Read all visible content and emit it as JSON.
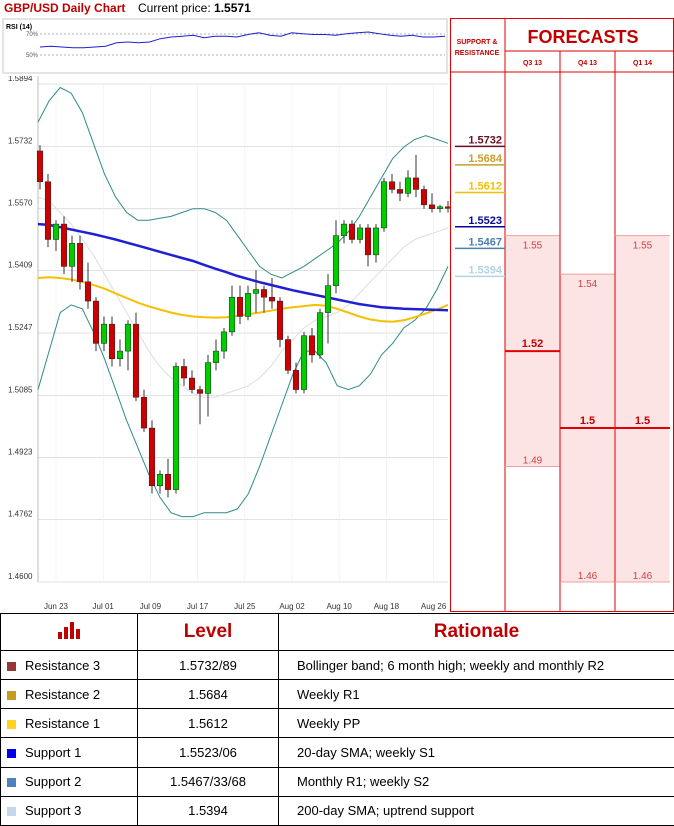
{
  "header": {
    "title": "GBP/USD Daily Chart",
    "price_label": "Current price:",
    "price_value": "1.5571"
  },
  "chart_data": [
    {
      "type": "candlestick",
      "title": "GBP/USD Daily Chart",
      "ylim": [
        1.46,
        1.5894
      ],
      "y_ticks": [
        "1.5894",
        "1.5732",
        "1.5570",
        "1.5409",
        "1.5247",
        "1.5085",
        "1.4923",
        "1.4762",
        "1.4600"
      ],
      "x_tick_labels": [
        "Jun 23",
        "Jul 01",
        "Jul 09",
        "Jul 17",
        "Jul 25",
        "Aug 02",
        "Aug 10",
        "Aug 18",
        "Aug 26"
      ],
      "grid": true,
      "candles": [
        [
          1.572,
          1.5735,
          1.562,
          1.564
        ],
        [
          1.564,
          1.566,
          1.547,
          1.549
        ],
        [
          1.549,
          1.554,
          1.546,
          1.553
        ],
        [
          1.553,
          1.555,
          1.54,
          1.542
        ],
        [
          1.542,
          1.55,
          1.538,
          1.548
        ],
        [
          1.548,
          1.55,
          1.536,
          1.538
        ],
        [
          1.538,
          1.543,
          1.531,
          1.533
        ],
        [
          1.533,
          1.534,
          1.52,
          1.522
        ],
        [
          1.522,
          1.529,
          1.52,
          1.527
        ],
        [
          1.527,
          1.529,
          1.516,
          1.518
        ],
        [
          1.518,
          1.523,
          1.516,
          1.52
        ],
        [
          1.52,
          1.528,
          1.515,
          1.527
        ],
        [
          1.527,
          1.53,
          1.507,
          1.508
        ],
        [
          1.508,
          1.51,
          1.499,
          1.5
        ],
        [
          1.5,
          1.502,
          1.483,
          1.485
        ],
        [
          1.485,
          1.489,
          1.483,
          1.488
        ],
        [
          1.488,
          1.492,
          1.482,
          1.484
        ],
        [
          1.484,
          1.517,
          1.483,
          1.516
        ],
        [
          1.516,
          1.518,
          1.511,
          1.513
        ],
        [
          1.513,
          1.515,
          1.509,
          1.51
        ],
        [
          1.51,
          1.511,
          1.501,
          1.509
        ],
        [
          1.509,
          1.519,
          1.503,
          1.517
        ],
        [
          1.517,
          1.523,
          1.515,
          1.52
        ],
        [
          1.52,
          1.526,
          1.518,
          1.525
        ],
        [
          1.525,
          1.537,
          1.524,
          1.534
        ],
        [
          1.534,
          1.537,
          1.527,
          1.529
        ],
        [
          1.529,
          1.537,
          1.528,
          1.535
        ],
        [
          1.535,
          1.541,
          1.53,
          1.536
        ],
        [
          1.536,
          1.537,
          1.53,
          1.534
        ],
        [
          1.534,
          1.539,
          1.531,
          1.533
        ],
        [
          1.533,
          1.534,
          1.521,
          1.523
        ],
        [
          1.523,
          1.524,
          1.514,
          1.515
        ],
        [
          1.515,
          1.517,
          1.509,
          1.51
        ],
        [
          1.51,
          1.525,
          1.509,
          1.524
        ],
        [
          1.524,
          1.526,
          1.517,
          1.519
        ],
        [
          1.519,
          1.531,
          1.518,
          1.53
        ],
        [
          1.53,
          1.54,
          1.522,
          1.537
        ],
        [
          1.537,
          1.554,
          1.535,
          1.55
        ],
        [
          1.55,
          1.554,
          1.548,
          1.553
        ],
        [
          1.553,
          1.554,
          1.548,
          1.549
        ],
        [
          1.549,
          1.553,
          1.548,
          1.552
        ],
        [
          1.552,
          1.553,
          1.542,
          1.545
        ],
        [
          1.545,
          1.553,
          1.543,
          1.552
        ],
        [
          1.552,
          1.565,
          1.551,
          1.564
        ],
        [
          1.564,
          1.566,
          1.561,
          1.562
        ],
        [
          1.562,
          1.564,
          1.559,
          1.561
        ],
        [
          1.561,
          1.567,
          1.56,
          1.565
        ],
        [
          1.565,
          1.571,
          1.56,
          1.562
        ],
        [
          1.562,
          1.563,
          1.557,
          1.558
        ],
        [
          1.558,
          1.561,
          1.556,
          1.557
        ],
        [
          1.557,
          1.558,
          1.556,
          1.5575
        ],
        [
          1.5575,
          1.559,
          1.556,
          1.5571
        ]
      ],
      "bollinger_upper": [
        1.5795,
        1.585,
        1.5885,
        1.587,
        1.582,
        1.574,
        1.566,
        1.56,
        1.556,
        1.554,
        1.554,
        1.5545,
        1.555,
        1.556,
        1.557,
        1.557,
        1.556,
        1.554,
        1.55,
        1.546,
        1.542,
        1.54,
        1.539,
        1.5405,
        1.542,
        1.544,
        1.546,
        1.548,
        1.551,
        1.555,
        1.56,
        1.565,
        1.57,
        1.573,
        1.575,
        1.576,
        1.575,
        1.574
      ],
      "bollinger_middle": [
        1.56,
        1.559,
        1.556,
        1.553,
        1.549,
        1.545,
        1.54,
        1.535,
        1.53,
        1.525,
        1.52,
        1.516,
        1.513,
        1.511,
        1.509,
        1.508,
        1.508,
        1.509,
        1.51,
        1.511,
        1.513,
        1.516,
        1.52,
        1.523,
        1.526,
        1.528,
        1.529,
        1.53,
        1.532,
        1.535,
        1.538,
        1.541,
        1.544,
        1.547,
        1.549,
        1.55,
        1.551,
        1.552
      ],
      "bollinger_lower": [
        1.51,
        1.52,
        1.53,
        1.532,
        1.531,
        1.525,
        1.518,
        1.51,
        1.502,
        1.495,
        1.488,
        1.482,
        1.478,
        1.477,
        1.477,
        1.478,
        1.478,
        1.478,
        1.479,
        1.483,
        1.49,
        1.498,
        1.506,
        1.514,
        1.52,
        1.52,
        1.517,
        1.511,
        1.51,
        1.511,
        1.514,
        1.519,
        1.522,
        1.526,
        1.528,
        1.531,
        1.536,
        1.542
      ],
      "sma_20": [
        1.553,
        1.5528,
        1.5522,
        1.5516,
        1.551,
        1.5504,
        1.5497,
        1.549,
        1.5482,
        1.5474,
        1.5466,
        1.5458,
        1.545,
        1.5442,
        1.5434,
        1.5424,
        1.5414,
        1.5405,
        1.5395,
        1.5387,
        1.5379,
        1.5372,
        1.5365,
        1.5358,
        1.5352,
        1.5346,
        1.534,
        1.5334,
        1.5328,
        1.5322,
        1.5318,
        1.5314,
        1.5312,
        1.531,
        1.5309,
        1.5308,
        1.5307,
        1.5306
      ],
      "sma_200": [
        1.539,
        1.5392,
        1.539,
        1.5386,
        1.538,
        1.5372,
        1.5362,
        1.535,
        1.5338,
        1.5326,
        1.5316,
        1.5308,
        1.53,
        1.5294,
        1.529,
        1.5288,
        1.5287,
        1.5288,
        1.5292,
        1.5296,
        1.53,
        1.5305,
        1.531,
        1.5314,
        1.5317,
        1.532,
        1.5318,
        1.531,
        1.53,
        1.529,
        1.5282,
        1.5278,
        1.5276,
        1.528,
        1.5288,
        1.5298,
        1.5308,
        1.532
      ],
      "colors": {
        "up": "#00cc00",
        "down": "#cc0000",
        "bollinger": "#2e8b8b",
        "sma_20": "#1f1fd6",
        "sma_200": "#f5c000"
      }
    },
    {
      "type": "line",
      "title": "RSI (14)",
      "y_ticks": [
        "70%",
        "50%"
      ],
      "ylim": [
        30,
        90
      ],
      "values": [
        60,
        61,
        60,
        59,
        59,
        60,
        61,
        65,
        66,
        65,
        66,
        70,
        72,
        73,
        74,
        71,
        73,
        73,
        72,
        75,
        77,
        74,
        73,
        77,
        76,
        75,
        75,
        74,
        76,
        77,
        78,
        76,
        74,
        73,
        74,
        72,
        72,
        73
      ],
      "color": "#1f1fd6"
    }
  ],
  "support_resistance": {
    "header": "SUPPORT & RESISTANCE",
    "levels": [
      {
        "label": "1.5732",
        "value": 1.5732,
        "color": "#6b0f23"
      },
      {
        "label": "1.5684",
        "value": 1.5684,
        "color": "#c79f2a"
      },
      {
        "label": "1.5612",
        "value": 1.5612,
        "color": "#f2c000"
      },
      {
        "label": "1.5523",
        "value": 1.5523,
        "color": "#0a0a9c"
      },
      {
        "label": "1.5467",
        "value": 1.5467,
        "color": "#4c7fae"
      },
      {
        "label": "1.5394",
        "value": 1.5394,
        "color": "#b7d2e2"
      }
    ]
  },
  "forecasts": {
    "title": "FORECASTS",
    "columns": [
      {
        "label": "Q3 13",
        "range_high": 1.55,
        "range_low": 1.49,
        "high_label": "1.55",
        "mid_value": 1.52,
        "mid_label": "1.52",
        "low_label": "1.49"
      },
      {
        "label": "Q4 13",
        "range_high": 1.54,
        "range_low": 1.46,
        "high_label": "1.54",
        "mid_value": 1.5,
        "mid_label": "1.5",
        "low_label": "1.46"
      },
      {
        "label": "Q1 14",
        "range_high": 1.55,
        "range_low": 1.46,
        "high_label": "1.55",
        "mid_value": 1.5,
        "mid_label": "1.5",
        "low_label": "1.46"
      }
    ]
  },
  "table": {
    "headers": [
      "Level",
      "Rationale"
    ],
    "rows": [
      {
        "name": "Resistance 3",
        "level": "1.5732/89",
        "rationale": "Bollinger band; 6 month high; weekly and monthly R2",
        "color": "#953735"
      },
      {
        "name": "Resistance 2",
        "level": "1.5684",
        "rationale": "Weekly R1",
        "color": "#c69c1c"
      },
      {
        "name": "Resistance 1",
        "level": "1.5612",
        "rationale": "Weekly PP",
        "color": "#ffd21f"
      },
      {
        "name": "Support 1",
        "level": "1.5523/06",
        "rationale": "20-day SMA; weekly S1",
        "color": "#0000ee"
      },
      {
        "name": "Support 2",
        "level": "1.5467/33/68",
        "rationale": "Monthly R1; weekly S2",
        "color": "#4f81bd"
      },
      {
        "name": "Support 3",
        "level": "1.5394",
        "rationale": "200-day SMA; uptrend support",
        "color": "#c5d7ea"
      }
    ],
    "header_icon": "bar-chart-icon",
    "header_icon_color": "#c00000"
  }
}
